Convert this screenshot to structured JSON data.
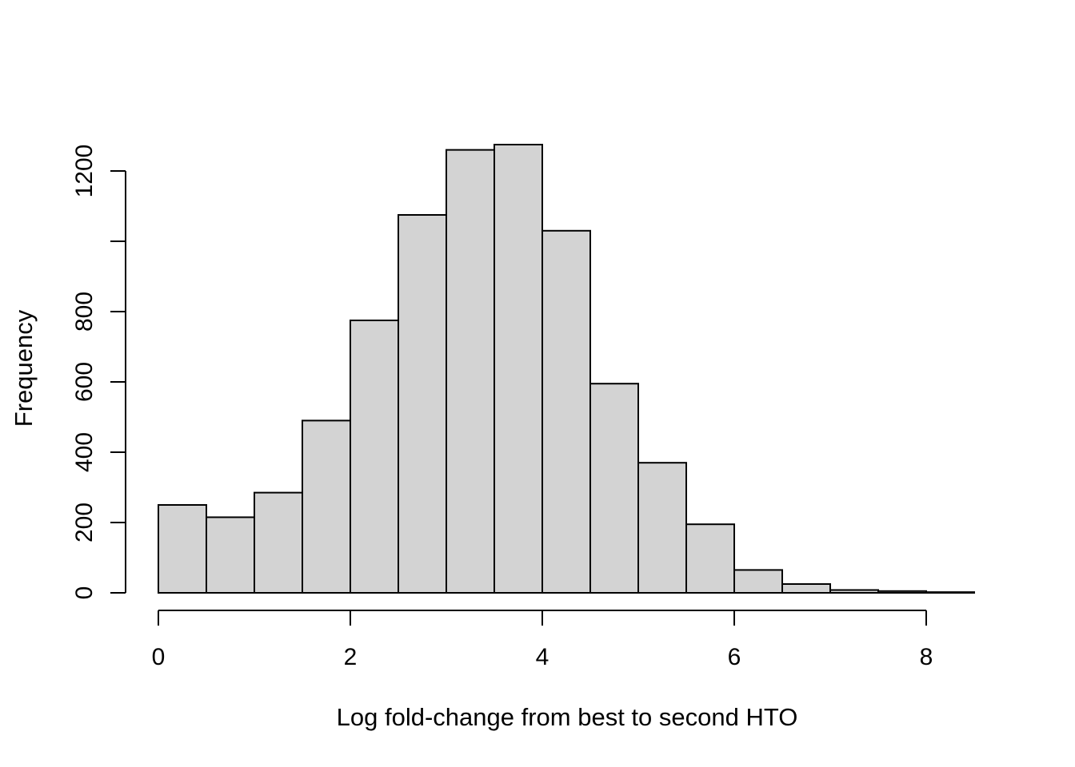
{
  "colors": {
    "background": "#ffffff",
    "bar_fill": "#d3d3d3",
    "bar_stroke": "#000000",
    "axis": "#000000",
    "text": "#000000"
  },
  "chart_data": {
    "type": "bar",
    "subtype": "histogram",
    "title": "",
    "xlabel": "Log fold-change from best to second HTO",
    "ylabel": "Frequency",
    "xlim": [
      0,
      8.5
    ],
    "ylim": [
      0,
      1275
    ],
    "grid": false,
    "legend": false,
    "bin_width": 0.5,
    "bins": [
      {
        "start": 0.0,
        "end": 0.5,
        "count": 250
      },
      {
        "start": 0.5,
        "end": 1.0,
        "count": 215
      },
      {
        "start": 1.0,
        "end": 1.5,
        "count": 285
      },
      {
        "start": 1.5,
        "end": 2.0,
        "count": 490
      },
      {
        "start": 2.0,
        "end": 2.5,
        "count": 775
      },
      {
        "start": 2.5,
        "end": 3.0,
        "count": 1075
      },
      {
        "start": 3.0,
        "end": 3.5,
        "count": 1260
      },
      {
        "start": 3.5,
        "end": 4.0,
        "count": 1275
      },
      {
        "start": 4.0,
        "end": 4.5,
        "count": 1030
      },
      {
        "start": 4.5,
        "end": 5.0,
        "count": 595
      },
      {
        "start": 5.0,
        "end": 5.5,
        "count": 370
      },
      {
        "start": 5.5,
        "end": 6.0,
        "count": 195
      },
      {
        "start": 6.0,
        "end": 6.5,
        "count": 65
      },
      {
        "start": 6.5,
        "end": 7.0,
        "count": 25
      },
      {
        "start": 7.0,
        "end": 7.5,
        "count": 8
      },
      {
        "start": 7.5,
        "end": 8.0,
        "count": 5
      },
      {
        "start": 8.0,
        "end": 8.5,
        "count": 2
      }
    ],
    "x_ticks": [
      {
        "value": 0,
        "label": "0"
      },
      {
        "value": 2,
        "label": "2"
      },
      {
        "value": 4,
        "label": "4"
      },
      {
        "value": 6,
        "label": "6"
      },
      {
        "value": 8,
        "label": "8"
      }
    ],
    "y_ticks": [
      {
        "value": 0,
        "label": "0"
      },
      {
        "value": 200,
        "label": "200"
      },
      {
        "value": 400,
        "label": "400"
      },
      {
        "value": 600,
        "label": "600"
      },
      {
        "value": 800,
        "label": "800"
      },
      {
        "value": 1000,
        "label": ""
      },
      {
        "value": 1200,
        "label": "1200"
      }
    ]
  }
}
